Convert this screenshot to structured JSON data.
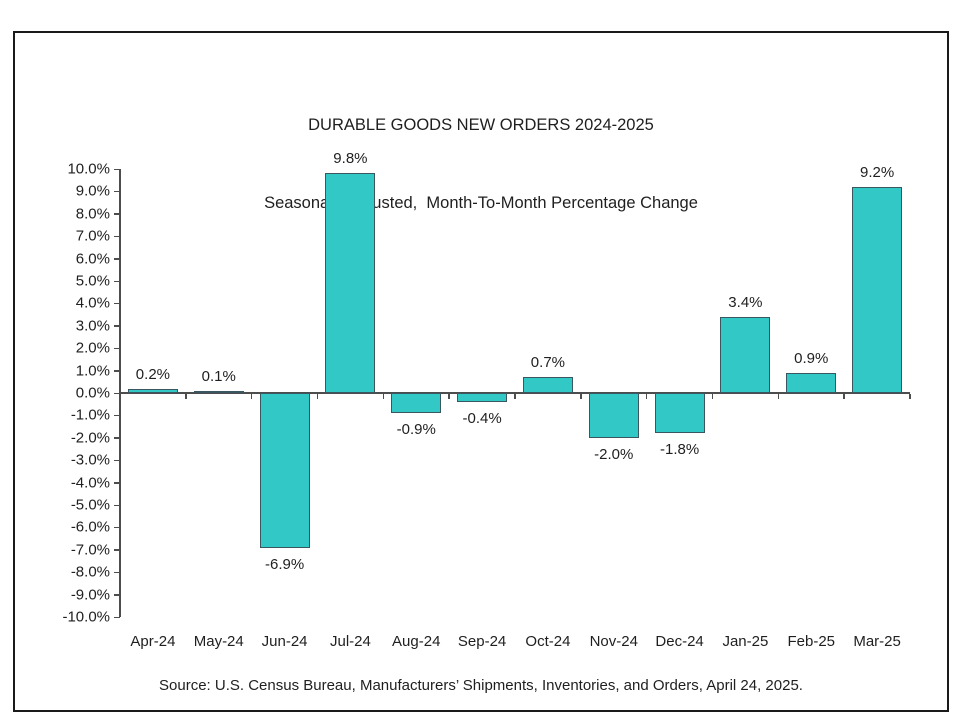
{
  "chart_data": {
    "type": "bar",
    "title": "DURABLE GOODS NEW ORDERS 2024-2025",
    "subtitle": "Seasonally Adjusted,  Month-To-Month Percentage Change",
    "categories": [
      "Apr-24",
      "May-24",
      "Jun-24",
      "Jul-24",
      "Aug-24",
      "Sep-24",
      "Oct-24",
      "Nov-24",
      "Dec-24",
      "Jan-25",
      "Feb-25",
      "Mar-25"
    ],
    "values": [
      0.2,
      0.1,
      -6.9,
      9.8,
      -0.9,
      -0.4,
      0.7,
      -2.0,
      -1.8,
      3.4,
      0.9,
      9.2
    ],
    "data_labels": [
      "0.2%",
      "0.1%",
      "-6.9%",
      "9.8%",
      "-0.9%",
      "-0.4%",
      "0.7%",
      "-2.0%",
      "-1.8%",
      "3.4%",
      "0.9%",
      "9.2%"
    ],
    "xlabel": "",
    "ylabel": "",
    "ylim": [
      -10.0,
      10.0
    ],
    "y_tick_step": 1.0,
    "y_tick_format": "percent_one_decimal",
    "grid": false,
    "legend": "none",
    "source_note": "Source: U.S. Census Bureau, Manufacturers’ Shipments, Inventories, and Orders, April 24, 2025.",
    "colors": {
      "bar_fill": "#32c8c6",
      "bar_border": "#3a5660",
      "axis_line": "#4d4d4d",
      "text": "#1f1f1f",
      "frame_border": "#1a1a1a",
      "background": "#ffffff"
    }
  }
}
